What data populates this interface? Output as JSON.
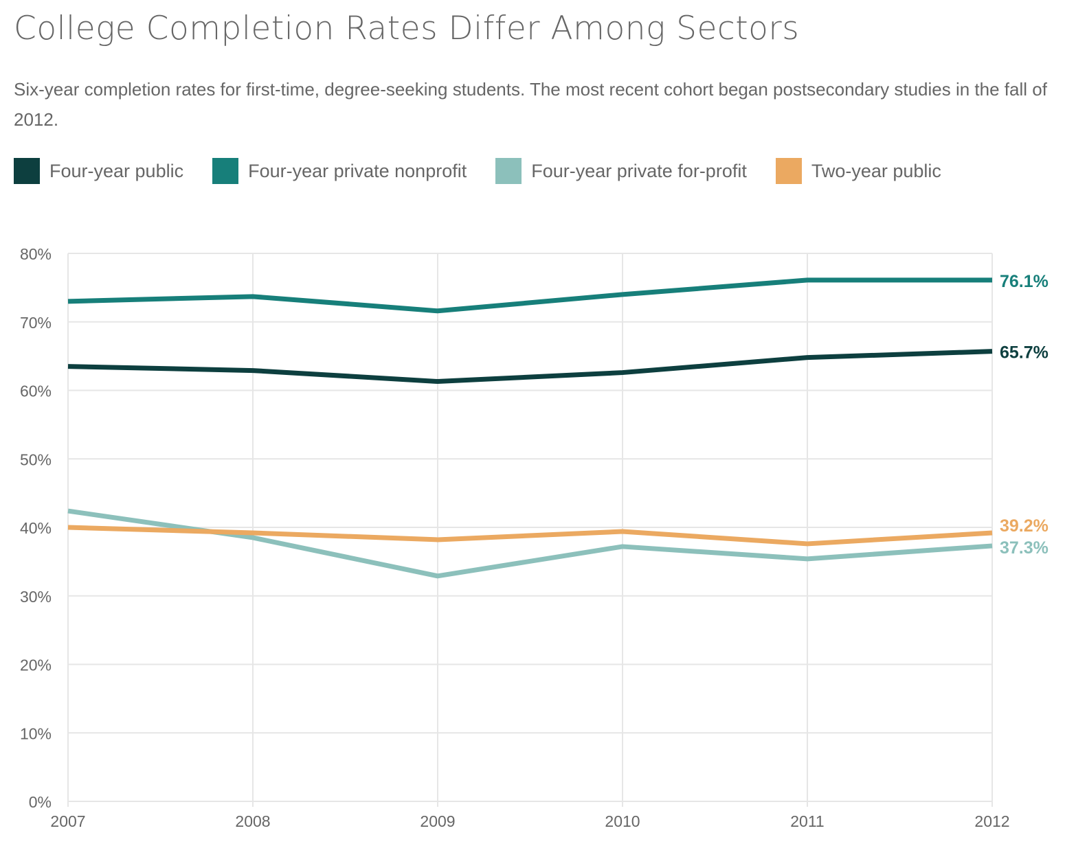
{
  "title": "College Completion Rates Differ Among Sectors",
  "subtitle": "Six-year completion rates for first-time, degree-seeking students. The most recent cohort began postsecondary studies in the fall of 2012.",
  "chart_data": {
    "type": "line",
    "x": [
      2007,
      2008,
      2009,
      2010,
      2011,
      2012
    ],
    "xtick_labels": [
      "2007",
      "2008",
      "2009",
      "2010",
      "2011",
      "2012"
    ],
    "ylim": [
      0,
      80
    ],
    "ytick_labels": [
      "0%",
      "10%",
      "20%",
      "30%",
      "40%",
      "50%",
      "60%",
      "70%",
      "80%"
    ],
    "grid": true,
    "legend_placement": "top",
    "series": [
      {
        "name": "Four-year public",
        "color": "#0d3f3f",
        "values": [
          63.5,
          62.9,
          61.3,
          62.6,
          64.8,
          65.7
        ],
        "end_label": "65.7%"
      },
      {
        "name": "Four-year private nonprofit",
        "color": "#177f7a",
        "values": [
          73.0,
          73.7,
          71.6,
          74.0,
          76.1,
          76.1
        ],
        "end_label": "76.1%"
      },
      {
        "name": "Four-year private for-profit",
        "color": "#8cc0bb",
        "values": [
          42.4,
          38.5,
          32.9,
          37.2,
          35.4,
          37.3
        ],
        "end_label": "37.3%"
      },
      {
        "name": "Two-year public",
        "color": "#eba961",
        "values": [
          40.0,
          39.2,
          38.2,
          39.4,
          37.6,
          39.2
        ],
        "end_label": "39.2%"
      }
    ]
  }
}
